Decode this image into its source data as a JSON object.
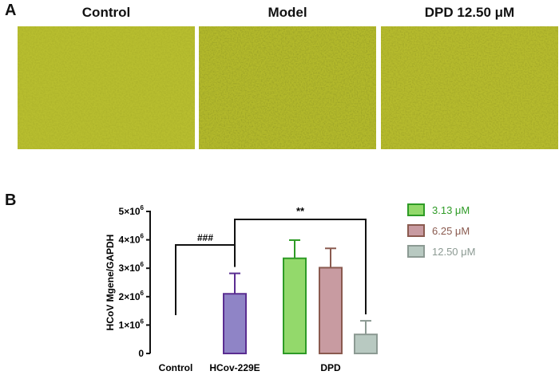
{
  "panel_a": {
    "label": "A",
    "images": [
      {
        "title": "Control",
        "description": "micrograph"
      },
      {
        "title": "Model",
        "description": "micrograph"
      },
      {
        "title": "DPD 12.50 μM",
        "description": "micrograph"
      }
    ],
    "image_color": "#b7bd2e"
  },
  "panel_b": {
    "label": "B",
    "chart_data": {
      "type": "bar",
      "ylabel": "HCoV Mgene/GAPDH",
      "ylim": [
        0,
        5000000
      ],
      "yticks": [
        {
          "value": 0,
          "base": "0",
          "exp": ""
        },
        {
          "value": 1000000,
          "base": "1×10",
          "exp": "6"
        },
        {
          "value": 2000000,
          "base": "2×10",
          "exp": "6"
        },
        {
          "value": 3000000,
          "base": "3×10",
          "exp": "6"
        },
        {
          "value": 4000000,
          "base": "4×10",
          "exp": "6"
        },
        {
          "value": 5000000,
          "base": "5×10",
          "exp": "6"
        }
      ],
      "groups": [
        "Control",
        "HCov-229E",
        "DPD"
      ],
      "bars": [
        {
          "group": "Control",
          "name": "Control",
          "value": 0,
          "error": 0,
          "fill": "#ffffff",
          "stroke": "#222222"
        },
        {
          "group": "HCov-229E",
          "name": "HCov-229E",
          "value": 2100000,
          "error": 720000,
          "fill": "#8f84c6",
          "stroke": "#5a2d91"
        },
        {
          "group": "DPD",
          "name": "3.13 μM",
          "value": 3350000,
          "error": 640000,
          "fill": "#93d96b",
          "stroke": "#2e9b26"
        },
        {
          "group": "DPD",
          "name": "6.25 μM",
          "value": 3020000,
          "error": 680000,
          "fill": "#c89ba1",
          "stroke": "#8a5a4f"
        },
        {
          "group": "DPD",
          "name": "12.50 μM",
          "value": 670000,
          "error": 480000,
          "fill": "#b8c9c1",
          "stroke": "#8c9a93"
        }
      ],
      "legend": [
        {
          "label": "3.13 μM",
          "fill": "#93d96b",
          "stroke": "#2e9b26",
          "text_color": "#2e9b26"
        },
        {
          "label": "6.25 μM",
          "fill": "#c89ba1",
          "stroke": "#8a5a4f",
          "text_color": "#8a5a4f"
        },
        {
          "label": "12.50 μM",
          "fill": "#b8c9c1",
          "stroke": "#8c9a93",
          "text_color": "#8c9a93"
        }
      ],
      "legend_position": "right",
      "annotations": [
        {
          "text": "###",
          "comparison": "Control vs HCov-229E"
        },
        {
          "text": "**",
          "comparison": "HCov-229E vs DPD 12.50 μM"
        }
      ]
    }
  }
}
